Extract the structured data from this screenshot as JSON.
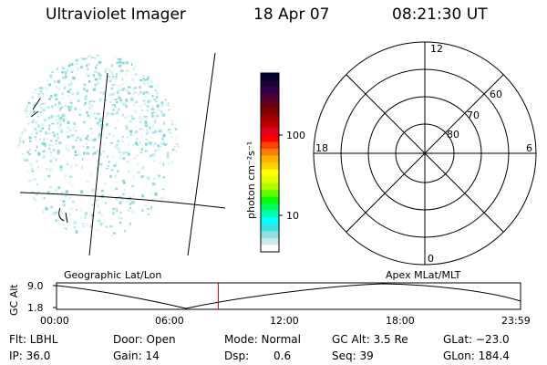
{
  "header": {
    "instrument": "Ultraviolet Imager",
    "date": "18 Apr 07",
    "time": "08:21:30 UT"
  },
  "colorbar": {
    "unit_label": "photon cm⁻²s⁻¹",
    "tick_labels": [
      "100",
      "10"
    ],
    "colors": [
      "#000033",
      "#1a0033",
      "#33004d",
      "#4d0033",
      "#660019",
      "#800000",
      "#a00000",
      "#c00000",
      "#e00020",
      "#ff0000",
      "#ff4000",
      "#ff8000",
      "#ffb000",
      "#ffd000",
      "#ffff00",
      "#e0ff00",
      "#b0ff00",
      "#60ff00",
      "#00ff00",
      "#00ff60",
      "#00ffb0",
      "#00ffff",
      "#40e0e0",
      "#90e0e0",
      "#c8eaea",
      "#ffffff"
    ]
  },
  "polar_plot": {
    "mlt_labels": {
      "top": "12",
      "left": "18",
      "right": "6",
      "bottom": "0"
    },
    "lat_labels": [
      "60",
      "70",
      "80"
    ]
  },
  "orbit_panel": {
    "left_title": "Geographic Lat/Lon",
    "right_title": "Apex MLat/MLT",
    "axis_label": "GC Alt",
    "y_ticks": [
      "9.0",
      "1.8"
    ],
    "x_ticks": [
      "00:00",
      "06:00",
      "12:00",
      "18:00",
      "23:59"
    ],
    "current_time_hours": 8.358,
    "marker_color": "#cc0000"
  },
  "info": {
    "flt": "Flt: LBHL",
    "ip": "IP: 36.0",
    "door": "Door: Open",
    "gain": "Gain: 14",
    "mode": "Mode: Normal",
    "dsp_label": "Dsp:",
    "dsp_value": "0.6",
    "gc_alt": "GC Alt: 3.5 Re",
    "seq": "Seq: 39",
    "glat": "GLat: −23.0",
    "glon": "GLon: 184.4"
  }
}
